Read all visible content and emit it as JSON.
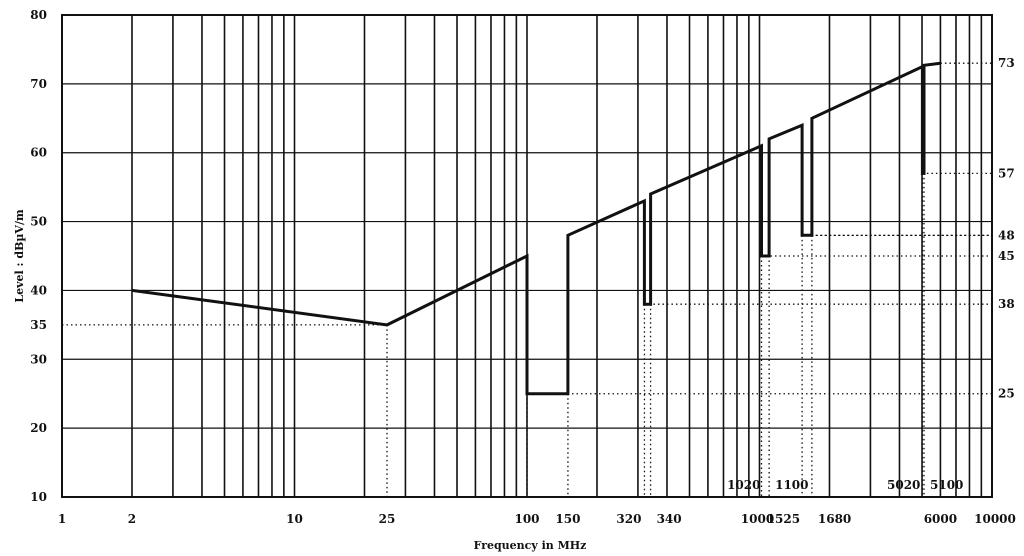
{
  "chart_data": {
    "type": "line",
    "xlabel": "Frequency in MHz",
    "ylabel": "Level : dBµV/m",
    "x_scale": "log",
    "xlim": [
      1,
      10000
    ],
    "ylim": [
      10,
      80
    ],
    "grid": true,
    "x_ticks": [
      "1",
      "2",
      "10",
      "25",
      "100",
      "150",
      "320",
      "340",
      "1000",
      "1020",
      "1100",
      "1525",
      "1680",
      "5020",
      "5100",
      "6000",
      "10000"
    ],
    "y_ticks_left": [
      "10",
      "20",
      "30",
      "35",
      "40",
      "50",
      "60",
      "70",
      "80"
    ],
    "y_ticks_right": [
      "25",
      "38",
      "45",
      "48",
      "57",
      "73"
    ],
    "series": [
      {
        "x": [
          2,
          25,
          100,
          100,
          150,
          150,
          320,
          320,
          340,
          340,
          1020,
          1020,
          1100,
          1100,
          1525,
          1525,
          1680,
          1680,
          5020,
          5020,
          5100,
          5100,
          6000
        ],
        "y": [
          40,
          35,
          45,
          25,
          25,
          48,
          53,
          38,
          38,
          54,
          61,
          45,
          45,
          62,
          64,
          48,
          48,
          65,
          72.5,
          57,
          57,
          72.7,
          73
        ]
      }
    ]
  }
}
